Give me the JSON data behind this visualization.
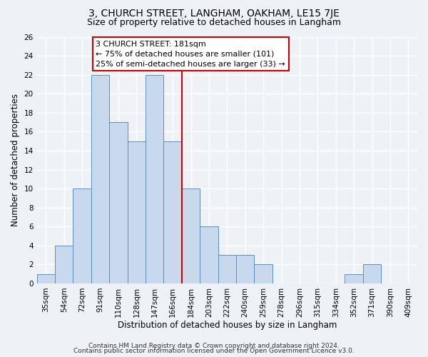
{
  "title": "3, CHURCH STREET, LANGHAM, OAKHAM, LE15 7JE",
  "subtitle": "Size of property relative to detached houses in Langham",
  "xlabel": "Distribution of detached houses by size in Langham",
  "ylabel": "Number of detached properties",
  "bar_labels": [
    "35sqm",
    "54sqm",
    "72sqm",
    "91sqm",
    "110sqm",
    "128sqm",
    "147sqm",
    "166sqm",
    "184sqm",
    "203sqm",
    "222sqm",
    "240sqm",
    "259sqm",
    "278sqm",
    "296sqm",
    "315sqm",
    "334sqm",
    "352sqm",
    "371sqm",
    "390sqm",
    "409sqm"
  ],
  "bar_values": [
    1,
    4,
    10,
    22,
    17,
    15,
    22,
    15,
    10,
    6,
    3,
    3,
    2,
    0,
    0,
    0,
    0,
    1,
    2,
    0,
    0
  ],
  "bar_color": "#c8d9ed",
  "bar_edge_color": "#5a8fc2",
  "vline_after_index": 7,
  "vline_color": "#cc0000",
  "annotation_box_text": "3 CHURCH STREET: 181sqm\n← 75% of detached houses are smaller (101)\n25% of semi-detached houses are larger (33) →",
  "ylim": [
    0,
    26
  ],
  "yticks": [
    0,
    2,
    4,
    6,
    8,
    10,
    12,
    14,
    16,
    18,
    20,
    22,
    24,
    26
  ],
  "footer_line1": "Contains HM Land Registry data © Crown copyright and database right 2024.",
  "footer_line2": "Contains public sector information licensed under the Open Government Licence v3.0.",
  "bg_color": "#eef2f7",
  "grid_color": "#ffffff",
  "title_fontsize": 10,
  "subtitle_fontsize": 9,
  "axis_label_fontsize": 8.5,
  "tick_fontsize": 7.5,
  "footer_fontsize": 6.5,
  "annotation_fontsize": 8
}
